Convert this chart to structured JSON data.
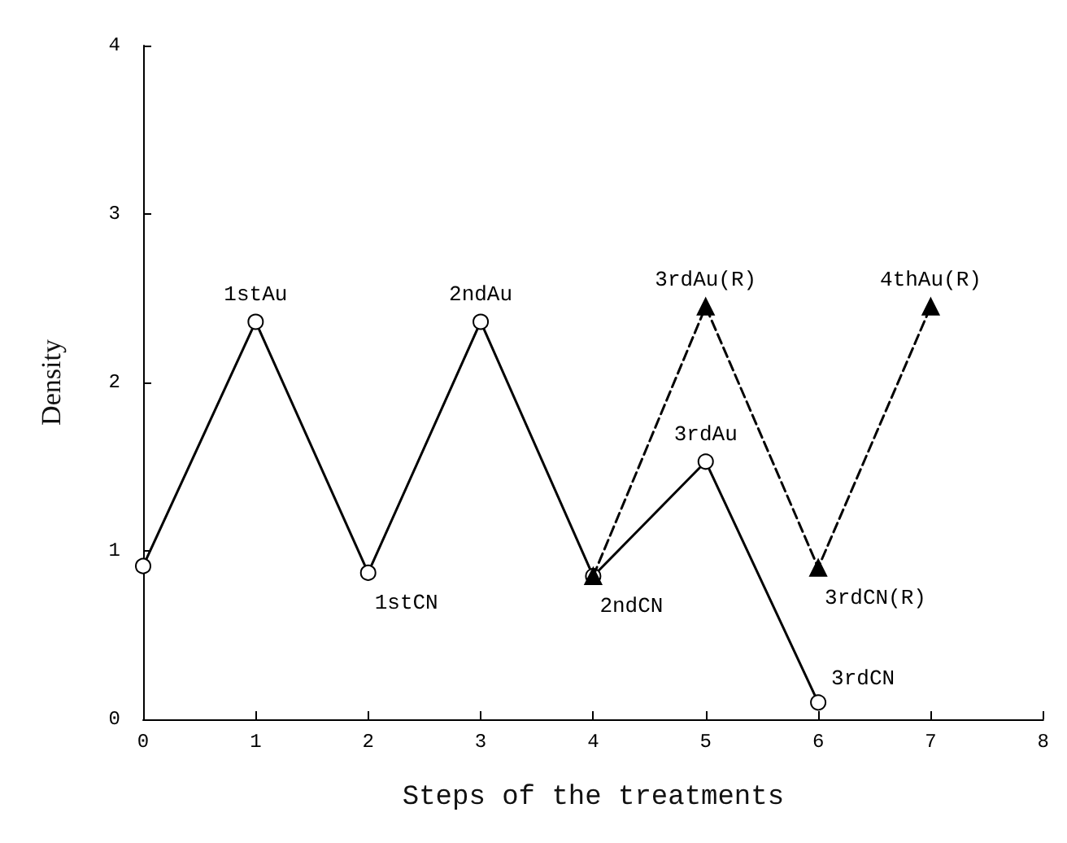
{
  "chart_data": {
    "type": "line",
    "xlabel": "Steps of the treatments",
    "ylabel": "Density",
    "xlim": [
      0,
      8
    ],
    "xticks": [
      0,
      1,
      2,
      3,
      4,
      5,
      6,
      7,
      8
    ],
    "ylim": [
      0,
      4
    ],
    "yticks": [
      0,
      1,
      2,
      3,
      4
    ],
    "grid": false,
    "series": [
      {
        "color": "#000000",
        "marker": "circle",
        "line_style": "solid",
        "x": [
          0,
          1,
          2,
          3,
          4,
          5,
          6
        ],
        "values": [
          0.91,
          2.36,
          0.87,
          2.36,
          0.85,
          1.53,
          0.1
        ]
      },
      {
        "color": "#000000",
        "marker": "triangle",
        "line_style": "dashed",
        "x": [
          4,
          5,
          6,
          7
        ],
        "values": [
          0.85,
          2.45,
          0.9,
          2.45
        ]
      }
    ],
    "annotations": [
      {
        "text": "1stAu",
        "x": 1,
        "y": 2.36
      },
      {
        "text": "1stCN",
        "x": 2,
        "y": 0.87
      },
      {
        "text": "2ndAu",
        "x": 3,
        "y": 2.36
      },
      {
        "text": "2ndCN",
        "x": 4,
        "y": 0.85
      },
      {
        "text": "3rdAu",
        "x": 5,
        "y": 1.53
      },
      {
        "text": "3rdCN",
        "x": 6,
        "y": 0.1
      },
      {
        "text": "3rdAu(R)",
        "x": 5,
        "y": 2.45
      },
      {
        "text": "3rdCN(R)",
        "x": 6,
        "y": 0.9
      },
      {
        "text": "4thAu(R)",
        "x": 7,
        "y": 2.45
      }
    ]
  }
}
